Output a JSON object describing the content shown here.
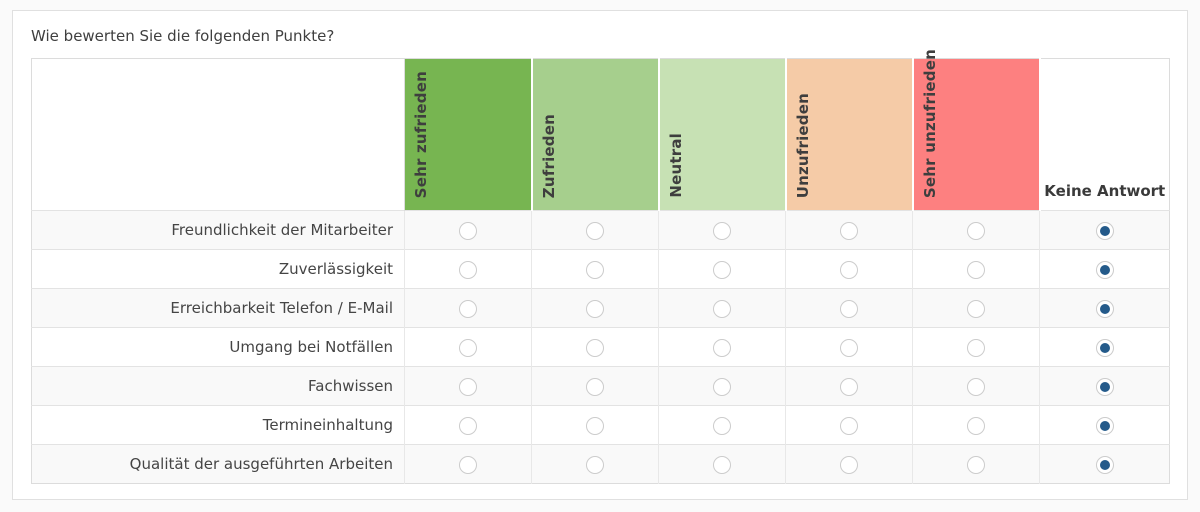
{
  "question": {
    "title": "Wie bewerten Sie die folgenden Punkte?"
  },
  "matrix": {
    "columns": [
      {
        "label": "Sehr zufrieden",
        "color": "#77b551"
      },
      {
        "label": "Zufrieden",
        "color": "#a6cf8d"
      },
      {
        "label": "Neutral",
        "color": "#c7e1b4"
      },
      {
        "label": "Unzufrieden",
        "color": "#f5cba7"
      },
      {
        "label": "Sehr unzufrieden",
        "color": "#fd8080"
      }
    ],
    "no_answer": {
      "label": "Keine Antwort"
    },
    "rows": [
      {
        "label": "Freundlichkeit der Mitarbeiter",
        "selected": "Keine Antwort"
      },
      {
        "label": "Zuverlässigkeit",
        "selected": "Keine Antwort"
      },
      {
        "label": "Erreichbarkeit Telefon / E-Mail",
        "selected": "Keine Antwort"
      },
      {
        "label": "Umgang bei Notfällen",
        "selected": "Keine Antwort"
      },
      {
        "label": "Fachwissen",
        "selected": "Keine Antwort"
      },
      {
        "label": "Termineinhaltung",
        "selected": "Keine Antwort"
      },
      {
        "label": "Qualität der ausgeführten Arbeiten",
        "selected": "Keine Antwort"
      }
    ]
  },
  "colors": {
    "selected_radio": "#245a8a",
    "row_stripe": "#f9f9f9",
    "panel_border": "#e0e0e0"
  }
}
